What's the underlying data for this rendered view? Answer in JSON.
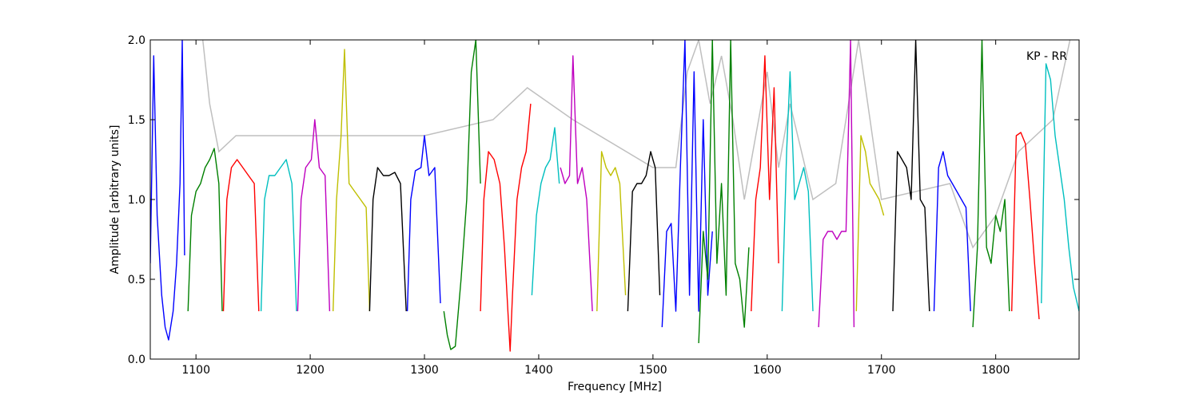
{
  "chart_data": {
    "type": "line",
    "title": "",
    "xlabel": "Frequency [MHz]",
    "ylabel": "Amplitude [arbitrary units]",
    "annotation": "KP - RR",
    "xlim": [
      1060,
      1873
    ],
    "ylim": [
      0.0,
      2.0
    ],
    "xticks": [
      1100,
      1200,
      1300,
      1400,
      1500,
      1600,
      1700,
      1800
    ],
    "yticks": [
      0.0,
      0.5,
      1.0,
      1.5,
      2.0
    ],
    "xtick_labels": [
      "1100",
      "1200",
      "1300",
      "1400",
      "1500",
      "1600",
      "1700",
      "1800"
    ],
    "ytick_labels": [
      "0.0",
      "0.5",
      "1.0",
      "1.5",
      "2.0"
    ],
    "grid": false,
    "legend": false,
    "colors": {
      "reference": "#bfbfbf",
      "blue": "#0000ff",
      "green": "#008000",
      "red": "#ff0000",
      "cyan": "#00bfbf",
      "magenta": "#bf00bf",
      "yellow": "#bfbf00",
      "black": "#000000"
    },
    "series": [
      {
        "color": "blue",
        "x": [
          1060,
          1063,
          1066,
          1070,
          1073,
          1076,
          1080,
          1083,
          1086,
          1088,
          1090
        ],
        "y": [
          0.6,
          1.9,
          0.9,
          0.4,
          0.2,
          0.12,
          0.3,
          0.6,
          1.1,
          2.0,
          0.65
        ]
      },
      {
        "color": "green",
        "x": [
          1093,
          1096,
          1100,
          1104,
          1108,
          1112,
          1116,
          1120,
          1123
        ],
        "y": [
          0.3,
          0.9,
          1.05,
          1.1,
          1.2,
          1.25,
          1.32,
          1.1,
          0.3
        ]
      },
      {
        "color": "red",
        "x": [
          1124,
          1127,
          1131,
          1136,
          1141,
          1146,
          1151,
          1155
        ],
        "y": [
          0.3,
          1.0,
          1.2,
          1.25,
          1.2,
          1.15,
          1.1,
          0.3
        ]
      },
      {
        "color": "cyan",
        "x": [
          1157,
          1160,
          1164,
          1169,
          1174,
          1179,
          1184,
          1188
        ],
        "y": [
          0.3,
          1.0,
          1.15,
          1.15,
          1.2,
          1.25,
          1.1,
          0.3
        ]
      },
      {
        "color": "magenta",
        "x": [
          1189,
          1192,
          1196,
          1201,
          1204,
          1208,
          1213,
          1217
        ],
        "y": [
          0.3,
          1.0,
          1.2,
          1.25,
          1.5,
          1.2,
          1.15,
          0.3
        ]
      },
      {
        "color": "yellow",
        "x": [
          1220,
          1223,
          1227,
          1230,
          1234,
          1239,
          1244,
          1249,
          1252
        ],
        "y": [
          0.3,
          1.0,
          1.4,
          1.94,
          1.1,
          1.05,
          1.0,
          0.95,
          0.3
        ]
      },
      {
        "color": "black",
        "x": [
          1252,
          1255,
          1259,
          1264,
          1269,
          1274,
          1279,
          1284
        ],
        "y": [
          0.3,
          1.0,
          1.2,
          1.15,
          1.15,
          1.17,
          1.1,
          0.3
        ]
      },
      {
        "color": "blue",
        "x": [
          1285,
          1288,
          1292,
          1297,
          1300,
          1304,
          1309,
          1314
        ],
        "y": [
          0.3,
          1.0,
          1.18,
          1.2,
          1.4,
          1.15,
          1.2,
          0.35
        ]
      },
      {
        "color": "green",
        "x": [
          1317,
          1320,
          1323,
          1327,
          1332,
          1337,
          1341,
          1345,
          1349
        ],
        "y": [
          0.3,
          0.15,
          0.06,
          0.08,
          0.5,
          1.0,
          1.8,
          2.0,
          1.1
        ]
      },
      {
        "color": "red",
        "x": [
          1349,
          1352,
          1356,
          1361,
          1366,
          1370,
          1373,
          1375,
          1377,
          1381,
          1385,
          1389,
          1393
        ],
        "y": [
          0.3,
          1.0,
          1.3,
          1.25,
          1.1,
          0.7,
          0.3,
          0.05,
          0.4,
          1.0,
          1.2,
          1.3,
          1.6
        ]
      },
      {
        "color": "cyan",
        "x": [
          1394,
          1398,
          1402,
          1406,
          1410,
          1414,
          1418
        ],
        "y": [
          0.4,
          0.9,
          1.1,
          1.2,
          1.25,
          1.45,
          1.1
        ]
      },
      {
        "color": "magenta",
        "x": [
          1419,
          1423,
          1427,
          1430,
          1434,
          1438,
          1442,
          1447
        ],
        "y": [
          1.2,
          1.1,
          1.15,
          1.9,
          1.1,
          1.2,
          1.0,
          0.3
        ]
      },
      {
        "color": "yellow",
        "x": [
          1451,
          1455,
          1459,
          1463,
          1467,
          1471,
          1476
        ],
        "y": [
          0.3,
          1.3,
          1.2,
          1.15,
          1.2,
          1.1,
          0.4
        ]
      },
      {
        "color": "black",
        "x": [
          1478,
          1482,
          1486,
          1490,
          1494,
          1498,
          1502,
          1506
        ],
        "y": [
          0.3,
          1.05,
          1.1,
          1.1,
          1.15,
          1.3,
          1.2,
          0.4
        ]
      },
      {
        "color": "blue",
        "x": [
          1508,
          1512,
          1516,
          1520,
          1524,
          1528,
          1532,
          1536,
          1540,
          1544,
          1548,
          1552
        ],
        "y": [
          0.2,
          0.8,
          0.85,
          0.3,
          1.2,
          2.0,
          0.4,
          1.8,
          0.3,
          1.5,
          0.4,
          0.8
        ]
      },
      {
        "color": "green",
        "x": [
          1540,
          1544,
          1548,
          1552,
          1556,
          1560,
          1564,
          1568,
          1572,
          1576,
          1580,
          1584
        ],
        "y": [
          0.1,
          0.8,
          0.5,
          2.0,
          0.6,
          1.1,
          0.4,
          2.0,
          0.6,
          0.5,
          0.2,
          0.7
        ]
      },
      {
        "color": "red",
        "x": [
          1586,
          1590,
          1594,
          1598,
          1602,
          1606,
          1610
        ],
        "y": [
          0.3,
          1.0,
          1.2,
          1.9,
          1.0,
          1.7,
          0.6
        ]
      },
      {
        "color": "cyan",
        "x": [
          1613,
          1617,
          1620,
          1624,
          1628,
          1632,
          1636,
          1640
        ],
        "y": [
          0.3,
          1.3,
          1.8,
          1.0,
          1.1,
          1.2,
          1.05,
          0.3
        ]
      },
      {
        "color": "magenta",
        "x": [
          1645,
          1649,
          1653,
          1657,
          1661,
          1665,
          1669,
          1673,
          1676
        ],
        "y": [
          0.2,
          0.75,
          0.8,
          0.8,
          0.75,
          0.8,
          0.8,
          2.0,
          0.2
        ]
      },
      {
        "color": "yellow",
        "x": [
          1678,
          1682,
          1686,
          1690,
          1694,
          1698,
          1702
        ],
        "y": [
          0.3,
          1.4,
          1.3,
          1.1,
          1.05,
          1.0,
          0.9
        ]
      },
      {
        "color": "black",
        "x": [
          1710,
          1714,
          1718,
          1722,
          1726,
          1730,
          1734,
          1738,
          1742
        ],
        "y": [
          0.3,
          1.3,
          1.25,
          1.2,
          1.0,
          2.0,
          1.0,
          0.95,
          0.3
        ]
      },
      {
        "color": "blue",
        "x": [
          1746,
          1750,
          1754,
          1758,
          1762,
          1766,
          1770,
          1774,
          1778
        ],
        "y": [
          0.3,
          1.2,
          1.3,
          1.15,
          1.1,
          1.05,
          1.0,
          0.95,
          0.3
        ]
      },
      {
        "color": "green",
        "x": [
          1780,
          1784,
          1788,
          1792,
          1796,
          1800,
          1804,
          1808,
          1812
        ],
        "y": [
          0.2,
          0.7,
          2.0,
          0.7,
          0.6,
          0.9,
          0.8,
          1.0,
          0.3
        ]
      },
      {
        "color": "red",
        "x": [
          1814,
          1818,
          1822,
          1826,
          1830,
          1834,
          1838
        ],
        "y": [
          0.3,
          1.4,
          1.42,
          1.35,
          1.0,
          0.6,
          0.25
        ]
      },
      {
        "color": "cyan",
        "x": [
          1840,
          1844,
          1848,
          1852,
          1856,
          1860,
          1864,
          1868,
          1873
        ],
        "y": [
          0.35,
          1.85,
          1.75,
          1.4,
          1.2,
          1.0,
          0.7,
          0.45,
          0.3
        ]
      }
    ],
    "reference": {
      "color": "reference",
      "x": [
        1106,
        1112,
        1120,
        1135,
        1300,
        1360,
        1390,
        1430,
        1500,
        1520,
        1530,
        1540,
        1550,
        1560,
        1570,
        1580,
        1590,
        1600,
        1610,
        1620,
        1640,
        1660,
        1680,
        1700,
        1760,
        1780,
        1800,
        1820,
        1850,
        1865
      ],
      "y": [
        2.0,
        1.6,
        1.3,
        1.4,
        1.4,
        1.5,
        1.7,
        1.5,
        1.2,
        1.2,
        1.8,
        2.0,
        1.6,
        1.9,
        1.5,
        1.0,
        1.4,
        1.8,
        1.2,
        1.6,
        1.0,
        1.1,
        2.0,
        1.0,
        1.1,
        0.7,
        0.9,
        1.3,
        1.5,
        2.0
      ]
    }
  }
}
